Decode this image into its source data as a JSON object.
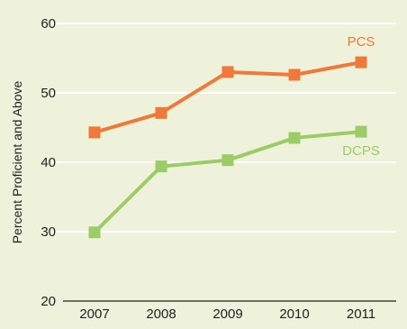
{
  "chart_data": {
    "type": "line",
    "title": "",
    "xlabel": "",
    "ylabel": "Percent Proficient and Above",
    "x": [
      "2007",
      "2008",
      "2009",
      "2010",
      "2011"
    ],
    "ylim": [
      20,
      60
    ],
    "yticks": [
      "20",
      "30",
      "40",
      "50",
      "60"
    ],
    "grid": {
      "horizontal": true,
      "vertical": false
    },
    "legend": "inline labels at right end of each line",
    "series": [
      {
        "name": "PCS",
        "color": "#f07838",
        "values": [
          44.3,
          47.1,
          53.0,
          52.6,
          54.4
        ]
      },
      {
        "name": "DCPS",
        "color": "#9ccc65",
        "values": [
          29.9,
          39.4,
          40.3,
          43.5,
          44.4
        ]
      }
    ]
  },
  "colors": {
    "background": "#eef2da",
    "gridline": "#ffffff",
    "axis": "#222222"
  }
}
